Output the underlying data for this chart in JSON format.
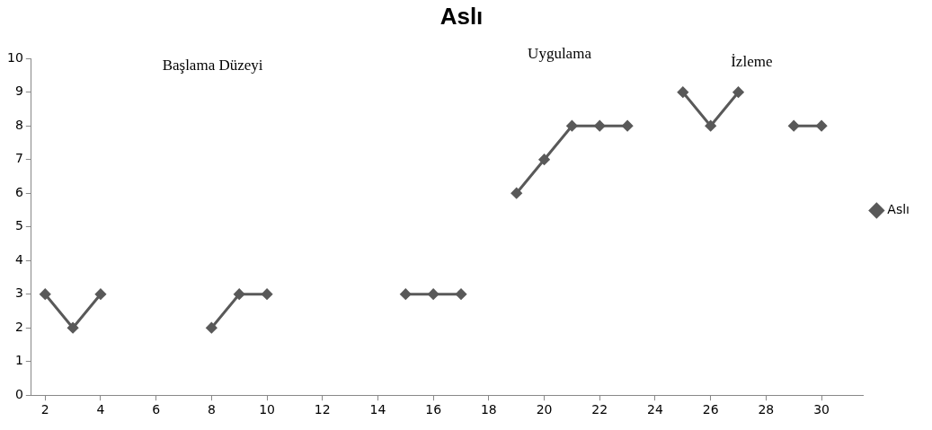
{
  "chart_data": {
    "type": "line",
    "title": "Aslı",
    "x": [
      2,
      3,
      4,
      5,
      6,
      7,
      8,
      9,
      10,
      11,
      12,
      13,
      14,
      15,
      16,
      17,
      18,
      19,
      20,
      21,
      22,
      23,
      24,
      25,
      26,
      27,
      28,
      29,
      30
    ],
    "series": [
      {
        "name": "Aslı",
        "color": "#595959",
        "values": [
          3,
          2,
          3,
          null,
          null,
          null,
          2,
          3,
          3,
          null,
          null,
          null,
          null,
          3,
          3,
          3,
          null,
          6,
          7,
          8,
          8,
          8,
          null,
          9,
          8,
          9,
          null,
          8,
          8
        ]
      }
    ],
    "xlim": [
      1.5,
      31.5
    ],
    "xticks": [
      2,
      4,
      6,
      8,
      10,
      12,
      14,
      16,
      18,
      20,
      22,
      24,
      26,
      28,
      30
    ],
    "ylim": [
      0,
      10
    ],
    "yticks": [
      0,
      1,
      2,
      3,
      4,
      5,
      6,
      7,
      8,
      9,
      10
    ],
    "annotations": [
      "Başlama Düzeyi",
      "Uygulama",
      "İzleme"
    ],
    "grid": false,
    "legend": "right",
    "marker": "diamond",
    "line_style": "solid"
  }
}
